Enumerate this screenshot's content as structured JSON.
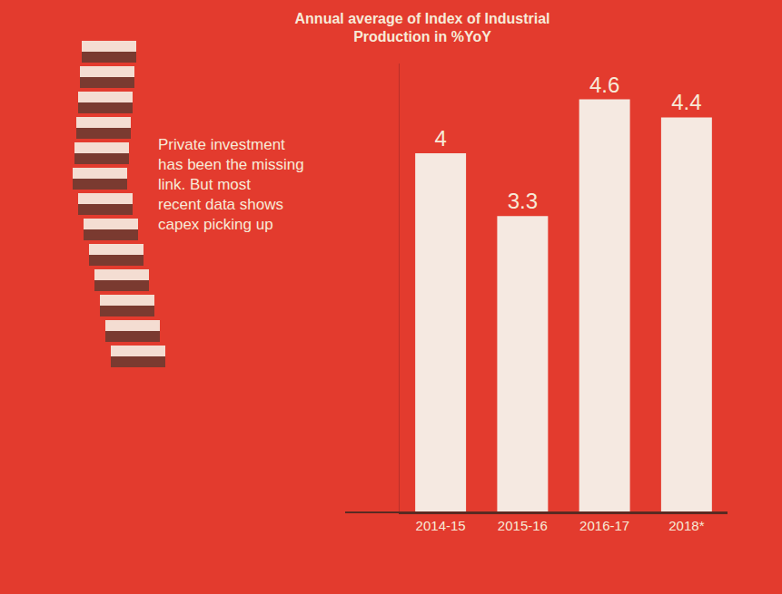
{
  "chart_data": {
    "type": "bar",
    "title": "Annual average of Index of Industrial Production in %YoY",
    "categories": [
      "2014-15",
      "2015-16",
      "2016-17",
      "2018*"
    ],
    "values": [
      4,
      3.3,
      4.6,
      4.4
    ],
    "color": "#f5e9e1",
    "ylim": [
      0,
      5
    ],
    "yticks": [],
    "grid": false,
    "data_labels": true,
    "tick_labels": "x",
    "annotations": [
      {
        "text": "Private investment has been the missing link. But most recent data shows capex picking up"
      }
    ]
  }
}
